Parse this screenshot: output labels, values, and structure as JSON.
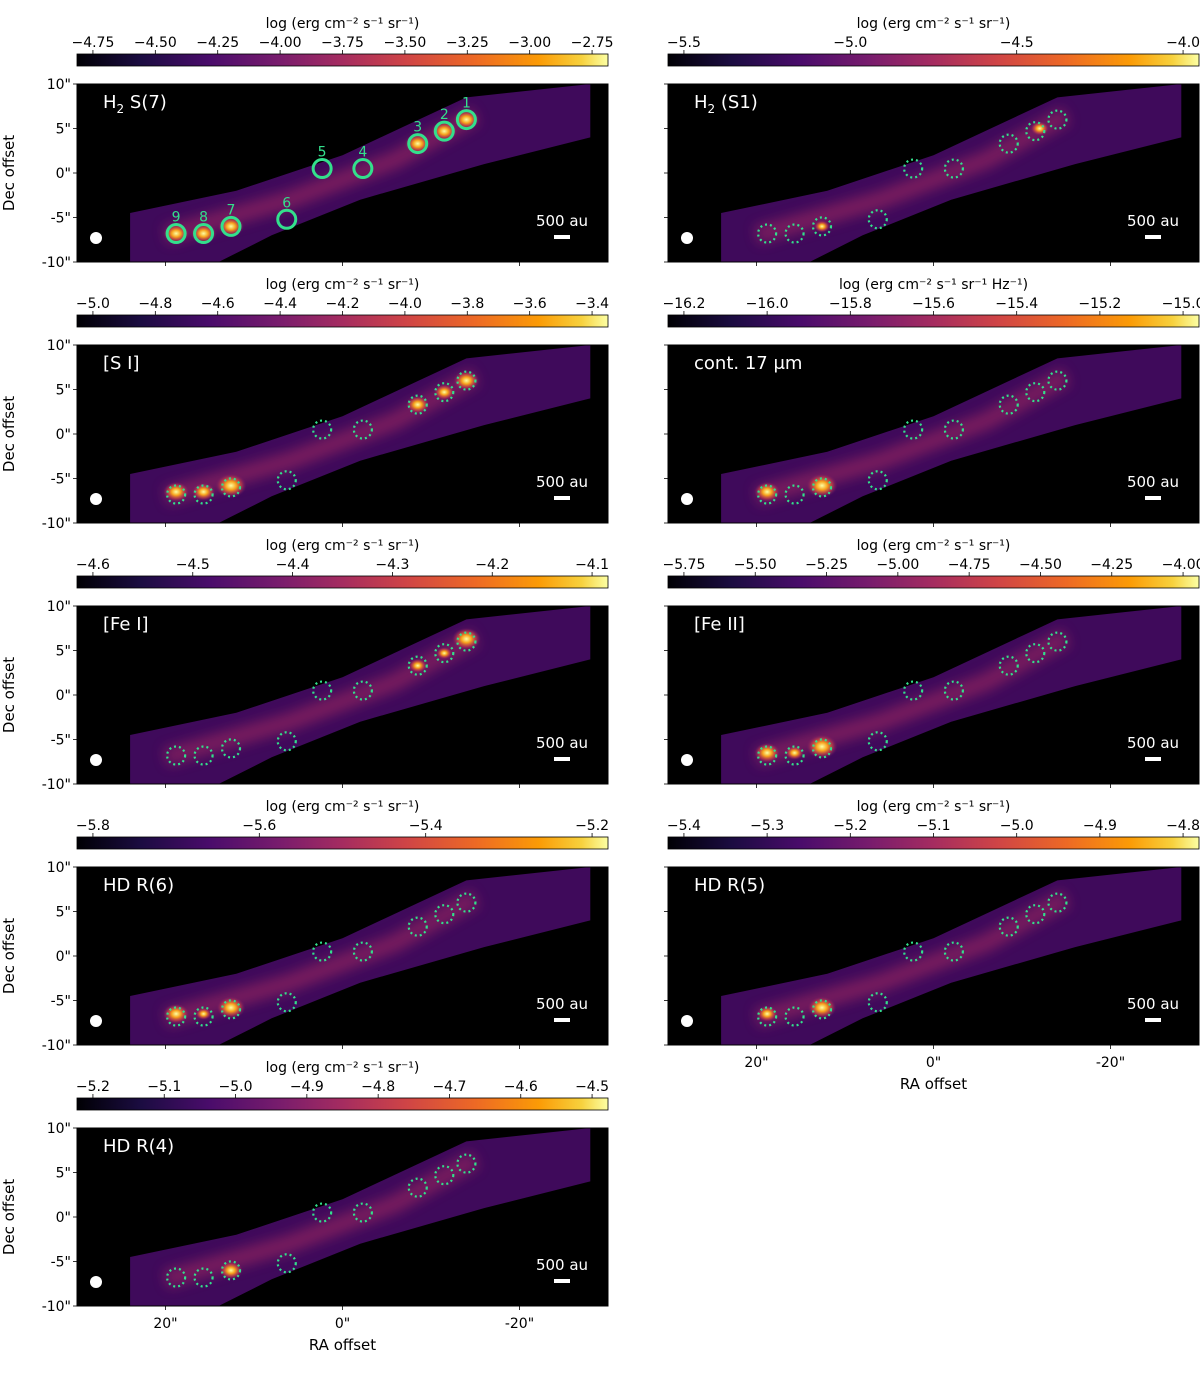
{
  "chart_data": {
    "type": "heatmap",
    "layout": "5 rows x 2 columns of emission maps with colorbars",
    "colormap": "inferno",
    "xlabel": "RA offset",
    "ylabel": "Dec offset",
    "x_ticks": [
      "20\"",
      "0\"",
      "-20\""
    ],
    "y_ticks": [
      "10\"",
      "5\"",
      "0\"",
      "-5\"",
      "-10\""
    ],
    "scale_bar_label": "500 au",
    "beam": "white filled circle (lower left)",
    "apertures": {
      "labels": [
        "1",
        "2",
        "3",
        "4",
        "5",
        "6",
        "7",
        "8",
        "9"
      ],
      "color": "#33e08c",
      "style_first_panel": "solid",
      "style_other_panels": "dotted"
    },
    "panels": [
      {
        "label": "H",
        "label_sub": "2",
        "label_rest": " S(7)",
        "colorbar_label": "log (erg cm⁻² s⁻¹ sr⁻¹)",
        "colorbar_ticks": [
          "−4.75",
          "−4.50",
          "−4.25",
          "−4.00",
          "−3.75",
          "−3.50",
          "−3.25",
          "−3.00",
          "−2.75"
        ],
        "show_numbers": true
      },
      {
        "label": "H",
        "label_sub": "2",
        "label_rest": " (S1)",
        "colorbar_label": "log (erg cm⁻² s⁻¹ sr⁻¹)",
        "colorbar_ticks": [
          "−5.5",
          "−5.0",
          "−4.5",
          "−4.0"
        ],
        "show_numbers": false
      },
      {
        "label": "[S I]",
        "label_sub": "",
        "label_rest": "",
        "colorbar_label": "log (erg cm⁻² s⁻¹ sr⁻¹)",
        "colorbar_ticks": [
          "−5.0",
          "−4.8",
          "−4.6",
          "−4.4",
          "−4.2",
          "−4.0",
          "−3.8",
          "−3.6",
          "−3.4"
        ],
        "show_numbers": false
      },
      {
        "label": "cont. 17 μm",
        "label_sub": "",
        "label_rest": "",
        "colorbar_label": "log (erg cm⁻² s⁻¹ sr⁻¹ Hz⁻¹)",
        "colorbar_ticks": [
          "−16.2",
          "−16.0",
          "−15.8",
          "−15.6",
          "−15.4",
          "−15.2",
          "−15.0"
        ],
        "show_numbers": false
      },
      {
        "label": "[Fe I]",
        "label_sub": "",
        "label_rest": "",
        "colorbar_label": "log (erg cm⁻² s⁻¹ sr⁻¹)",
        "colorbar_ticks": [
          "−4.6",
          "−4.5",
          "−4.4",
          "−4.3",
          "−4.2",
          "−4.1"
        ],
        "show_numbers": false
      },
      {
        "label": "[Fe II]",
        "label_sub": "",
        "label_rest": "",
        "colorbar_label": "log (erg cm⁻² s⁻¹ sr⁻¹)",
        "colorbar_ticks": [
          "−5.75",
          "−5.50",
          "−5.25",
          "−5.00",
          "−4.75",
          "−4.50",
          "−4.25",
          "−4.00"
        ],
        "show_numbers": false
      },
      {
        "label": "HD R(6)",
        "label_sub": "",
        "label_rest": "",
        "colorbar_label": "log (erg cm⁻² s⁻¹ sr⁻¹)",
        "colorbar_ticks": [
          "−5.8",
          "−5.6",
          "−5.4",
          "−5.2"
        ],
        "show_numbers": false
      },
      {
        "label": "HD R(5)",
        "label_sub": "",
        "label_rest": "",
        "colorbar_label": "log (erg cm⁻² s⁻¹ sr⁻¹)",
        "colorbar_ticks": [
          "−5.4",
          "−5.3",
          "−5.2",
          "−5.1",
          "−5.0",
          "−4.9",
          "−4.8"
        ],
        "show_numbers": false
      },
      {
        "label": "HD R(4)",
        "label_sub": "",
        "label_rest": "",
        "colorbar_label": "log (erg cm⁻² s⁻¹ sr⁻¹)",
        "colorbar_ticks": [
          "−5.2",
          "−5.1",
          "−5.0",
          "−4.9",
          "−4.8",
          "−4.7",
          "−4.6",
          "−4.5"
        ],
        "show_numbers": false
      }
    ]
  }
}
